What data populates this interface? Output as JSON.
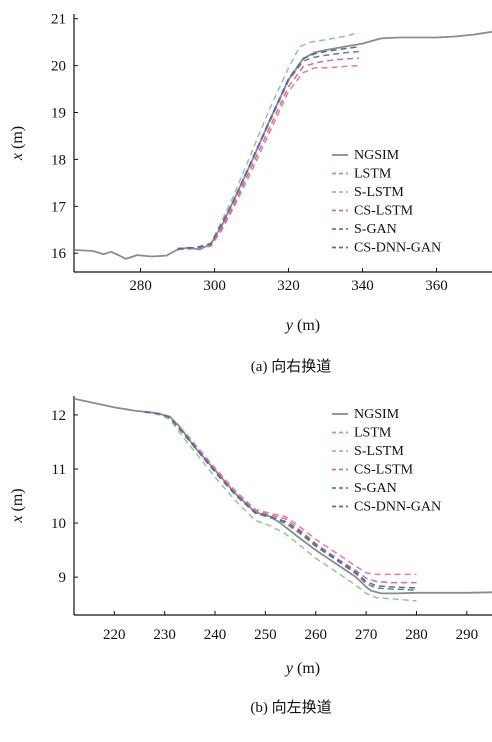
{
  "chart_data": [
    {
      "type": "line",
      "caption": "(a) 向右换道",
      "xlabel_var": "y",
      "xlabel_unit": " (m)",
      "ylabel_var": "x",
      "ylabel_unit": " (m)",
      "xlim": [
        262,
        375
      ],
      "ylim": [
        15.6,
        21.1
      ],
      "xticks": [
        "280",
        "300",
        "320",
        "340",
        "360"
      ],
      "xtick_values": [
        280,
        300,
        320,
        340,
        360
      ],
      "yticks": [
        "16",
        "17",
        "18",
        "19",
        "20",
        "21"
      ],
      "ytick_values": [
        16,
        17,
        18,
        19,
        20,
        21
      ],
      "legend_position": "right",
      "series": [
        {
          "name": "NGSIM",
          "color": "#8c8c8c",
          "dash": "solid",
          "x": [
            262,
            267,
            270,
            272,
            274,
            276,
            279,
            283,
            287,
            290,
            293,
            296,
            299,
            302,
            305,
            310,
            315,
            320,
            324,
            327,
            330,
            335,
            340,
            345,
            350,
            355,
            360,
            365,
            370,
            375
          ],
          "y": [
            16.07,
            16.05,
            15.98,
            16.03,
            15.96,
            15.88,
            15.96,
            15.93,
            15.95,
            16.08,
            16.12,
            16.08,
            16.2,
            16.6,
            17.1,
            17.95,
            18.85,
            19.7,
            20.15,
            20.28,
            20.33,
            20.4,
            20.47,
            20.58,
            20.6,
            20.6,
            20.6,
            20.62,
            20.66,
            20.72
          ]
        },
        {
          "name": "LSTM",
          "color": "#e88080",
          "dash": "6,4",
          "x": [
            290,
            295,
            299,
            302,
            305,
            310,
            315,
            320,
            324,
            327,
            330,
            335,
            339
          ],
          "y": [
            16.08,
            16.1,
            16.15,
            16.5,
            16.95,
            17.75,
            18.6,
            19.45,
            19.85,
            19.95,
            19.95,
            19.98,
            20.0
          ]
        },
        {
          "name": "S-LSTM",
          "color": "#8ec98e",
          "dash": "6,4",
          "x": [
            290,
            295,
            299,
            302,
            305,
            310,
            315,
            320,
            323,
            326,
            330,
            335,
            339
          ],
          "y": [
            16.1,
            16.12,
            16.22,
            16.7,
            17.2,
            18.15,
            19.1,
            19.95,
            20.4,
            20.5,
            20.55,
            20.62,
            20.7
          ]
        },
        {
          "name": "CS-LSTM",
          "color": "#d966a8",
          "dash": "6,4",
          "x": [
            290,
            295,
            299,
            302,
            305,
            310,
            315,
            320,
            324,
            327,
            330,
            335,
            339
          ],
          "y": [
            16.08,
            16.1,
            16.17,
            16.55,
            17.0,
            17.85,
            18.7,
            19.55,
            19.98,
            20.05,
            20.1,
            20.14,
            20.16
          ]
        },
        {
          "name": "S-GAN",
          "color": "#5e8a74",
          "dash": "6,4",
          "x": [
            290,
            295,
            299,
            302,
            305,
            310,
            315,
            320,
            324,
            327,
            330,
            335,
            339
          ],
          "y": [
            16.1,
            16.12,
            16.2,
            16.62,
            17.08,
            17.95,
            18.82,
            19.68,
            20.1,
            20.18,
            20.22,
            20.27,
            20.3
          ]
        },
        {
          "name": "CS-DNN-GAN",
          "color": "#5b63ad",
          "dash": "6,4",
          "x": [
            290,
            295,
            299,
            302,
            305,
            310,
            315,
            320,
            324,
            327,
            330,
            335,
            339
          ],
          "y": [
            16.1,
            16.12,
            16.2,
            16.64,
            17.1,
            17.98,
            18.86,
            19.72,
            20.15,
            20.25,
            20.3,
            20.36,
            20.4
          ]
        }
      ]
    },
    {
      "type": "line",
      "caption": "(b)  向左换道",
      "xlabel_var": "y",
      "xlabel_unit": " (m)",
      "ylabel_var": "x",
      "ylabel_unit": " (m)",
      "xlim": [
        212,
        295
      ],
      "ylim": [
        8.3,
        12.35
      ],
      "xticks": [
        "220",
        "230",
        "240",
        "250",
        "260",
        "270",
        "280",
        "290"
      ],
      "xtick_values": [
        220,
        230,
        240,
        250,
        260,
        270,
        280,
        290
      ],
      "yticks": [
        "9",
        "10",
        "11",
        "12"
      ],
      "ytick_values": [
        9,
        10,
        11,
        12
      ],
      "legend_position": "right",
      "series": [
        {
          "name": "NGSIM",
          "color": "#8c8c8c",
          "dash": "solid",
          "x": [
            212,
            216,
            220,
            224,
            228,
            231,
            233,
            236,
            240,
            244,
            248,
            251,
            253,
            256,
            260,
            264,
            268,
            270,
            271,
            273,
            276,
            280,
            285,
            290,
            295
          ],
          "y": [
            12.3,
            12.22,
            12.14,
            12.08,
            12.04,
            11.97,
            11.78,
            11.4,
            10.98,
            10.55,
            10.2,
            10.12,
            10.0,
            9.78,
            9.5,
            9.25,
            9.0,
            8.82,
            8.75,
            8.7,
            8.7,
            8.71,
            8.71,
            8.71,
            8.72
          ]
        },
        {
          "name": "LSTM",
          "color": "#e88080",
          "dash": "6,4",
          "x": [
            226,
            229,
            231,
            234,
            237,
            240,
            244,
            248,
            251,
            254,
            257,
            260,
            264,
            268,
            270,
            272,
            275,
            280
          ],
          "y": [
            12.06,
            12.02,
            11.96,
            11.68,
            11.35,
            11.02,
            10.6,
            10.25,
            10.18,
            10.12,
            9.92,
            9.7,
            9.45,
            9.2,
            9.08,
            9.05,
            9.05,
            9.05
          ]
        },
        {
          "name": "S-LSTM",
          "color": "#8ec98e",
          "dash": "6,4",
          "x": [
            226,
            229,
            231,
            234,
            237,
            240,
            244,
            248,
            251,
            254,
            257,
            260,
            264,
            268,
            270,
            272,
            275,
            280
          ],
          "y": [
            12.05,
            12.0,
            11.92,
            11.55,
            11.2,
            10.85,
            10.42,
            10.05,
            9.95,
            9.8,
            9.58,
            9.35,
            9.1,
            8.85,
            8.7,
            8.62,
            8.6,
            8.56
          ]
        },
        {
          "name": "CS-LSTM",
          "color": "#d966a8",
          "dash": "6,4",
          "x": [
            226,
            229,
            231,
            234,
            237,
            240,
            244,
            248,
            251,
            254,
            257,
            260,
            264,
            268,
            270,
            272,
            275,
            280
          ],
          "y": [
            12.06,
            12.02,
            11.95,
            11.65,
            11.32,
            10.98,
            10.56,
            10.22,
            10.15,
            10.08,
            9.86,
            9.62,
            9.36,
            9.12,
            8.98,
            8.92,
            8.9,
            8.9
          ]
        },
        {
          "name": "S-GAN",
          "color": "#5e8a74",
          "dash": "6,4",
          "x": [
            226,
            229,
            231,
            234,
            237,
            240,
            244,
            248,
            251,
            254,
            257,
            260,
            264,
            268,
            270,
            272,
            275,
            280
          ],
          "y": [
            12.06,
            12.02,
            11.95,
            11.62,
            11.28,
            10.94,
            10.52,
            10.18,
            10.1,
            10.0,
            9.8,
            9.57,
            9.32,
            9.06,
            8.88,
            8.8,
            8.78,
            8.76
          ]
        },
        {
          "name": "CS-DNN-GAN",
          "color": "#5b63ad",
          "dash": "6,4",
          "x": [
            226,
            229,
            231,
            234,
            237,
            240,
            244,
            248,
            251,
            254,
            257,
            260,
            264,
            268,
            270,
            272,
            275,
            280
          ],
          "y": [
            12.06,
            12.02,
            11.96,
            11.64,
            11.3,
            10.96,
            10.54,
            10.2,
            10.12,
            10.03,
            9.83,
            9.6,
            9.34,
            9.09,
            8.92,
            8.84,
            8.82,
            8.8
          ]
        }
      ]
    }
  ]
}
